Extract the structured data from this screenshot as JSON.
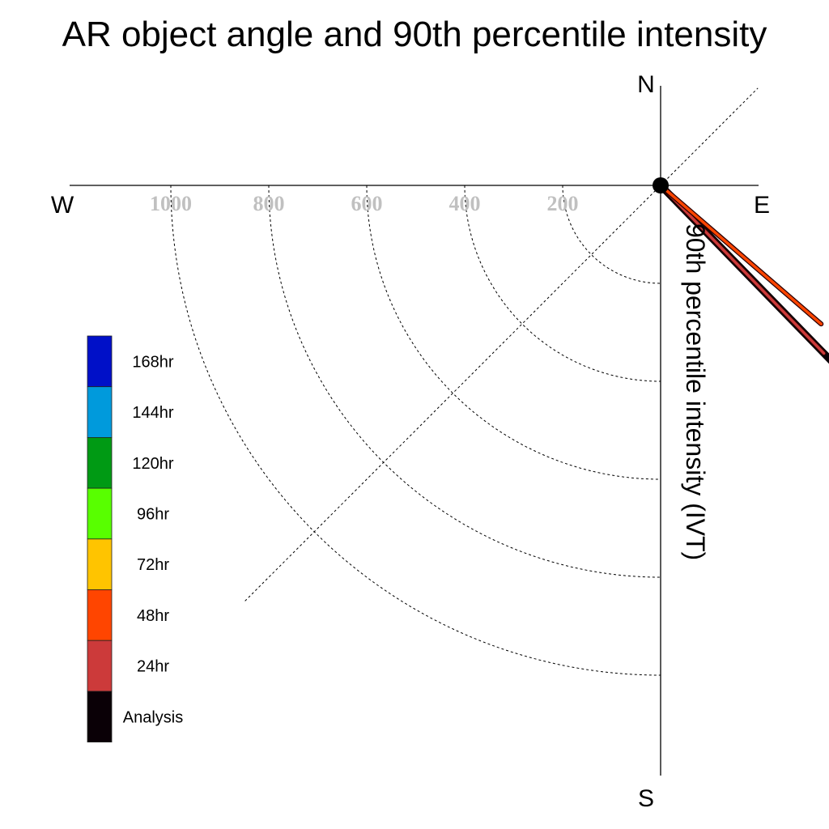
{
  "chart_data": {
    "type": "line",
    "title": "AR object angle and 90th percentile intensity",
    "ylabel": "90th percentile intensity (IVT)",
    "compass": {
      "north": "N",
      "south": "S",
      "west": "W",
      "east": "E"
    },
    "radial_ticks": [
      {
        "value": 200,
        "label": "200"
      },
      {
        "value": 400,
        "label": "400"
      },
      {
        "value": 600,
        "label": "600"
      },
      {
        "value": 800,
        "label": "800"
      },
      {
        "value": 1000,
        "label": "1000"
      }
    ],
    "radial_range": [
      0,
      1200
    ],
    "grid": true,
    "series": [
      {
        "name": "Analysis",
        "color": "#0a0006",
        "angle_deg": 135.8,
        "intensity": 525
      },
      {
        "name": "24hr",
        "color": "#cc3a3a",
        "angle_deg": 135.8,
        "intensity": 478
      },
      {
        "name": "48hr",
        "color": "#ff4500",
        "angle_deg": 130.8,
        "intensity": 433
      }
    ],
    "legend": {
      "placement": "left",
      "entries": [
        {
          "label": "168hr",
          "color": "#0010c8"
        },
        {
          "label": "144hr",
          "color": "#009adc"
        },
        {
          "label": "120hr",
          "color": "#009a14"
        },
        {
          "label": "96hr",
          "color": "#58ff00"
        },
        {
          "label": "72hr",
          "color": "#ffc400"
        },
        {
          "label": "48hr",
          "color": "#ff4500"
        },
        {
          "label": "24hr",
          "color": "#cc3a3a"
        },
        {
          "label": "Analysis",
          "color": "#0a0006"
        }
      ]
    }
  }
}
